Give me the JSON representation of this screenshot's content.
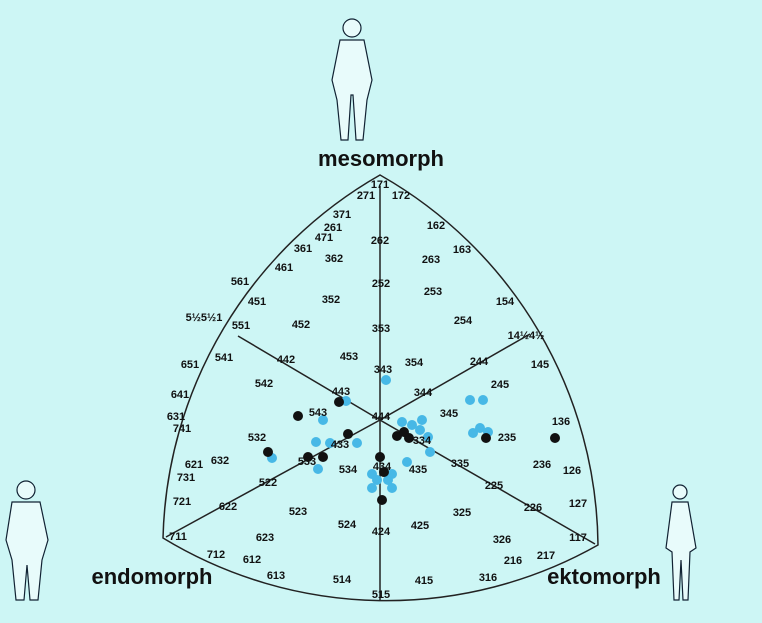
{
  "titles": [
    "mesomorph",
    "endomorph",
    "ektomorph"
  ],
  "codes": [
    "171",
    "271",
    "172",
    "371",
    "261",
    "162",
    "471",
    "361",
    "262",
    "263",
    "163",
    "461",
    "362",
    "561",
    "252",
    "253",
    "154",
    "451",
    "352",
    "5½5½1",
    "551",
    "452",
    "353",
    "254",
    "14½4½",
    "651",
    "541",
    "442",
    "453",
    "354",
    "244",
    "145",
    "343",
    "542",
    "641",
    "443",
    "344",
    "245",
    "631",
    "741",
    "543",
    "444",
    "345",
    "136",
    "532",
    "632",
    "433",
    "334",
    "235",
    "621",
    "533",
    "534",
    "434",
    "435",
    "335",
    "236",
    "126",
    "731",
    "522",
    "225",
    "721",
    "622",
    "523",
    "325",
    "226",
    "127",
    "524",
    "425",
    "424",
    "711",
    "623",
    "326",
    "117",
    "712",
    "612",
    "216",
    "217",
    "613",
    "514",
    "415",
    "316",
    "515"
  ]
}
